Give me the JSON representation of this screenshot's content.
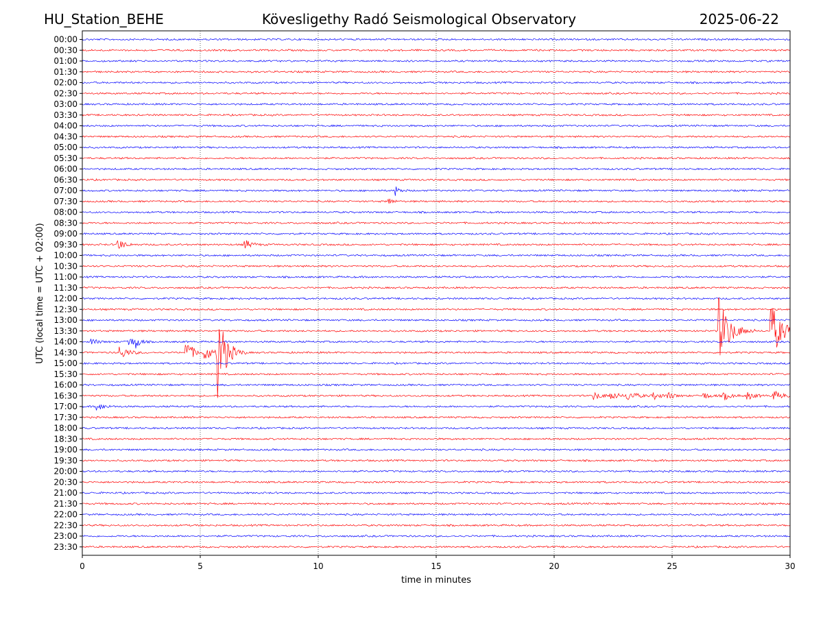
{
  "header": {
    "station": "HU_Station_BEHE",
    "observatory": "Kövesligethy Radó Seismological Observatory",
    "date": "2025-06-22"
  },
  "chart_data": {
    "type": "line",
    "title": "Kövesligethy Radó Seismological Observatory",
    "xlabel": "time in minutes",
    "ylabel": "UTC (local time = UTC + 02:00)",
    "xlim": [
      0,
      30
    ],
    "x_ticks": [
      "0",
      "5",
      "10",
      "15",
      "20",
      "25",
      "30"
    ],
    "grid_x_minutes": [
      5,
      10,
      15,
      20,
      25
    ],
    "grid": "vertical dotted",
    "colors": {
      "even_rows": "#0000ff",
      "odd_rows": "#ff0000"
    },
    "rows": [
      "00:00",
      "00:30",
      "01:00",
      "01:30",
      "02:00",
      "02:30",
      "03:00",
      "03:30",
      "04:00",
      "04:30",
      "05:00",
      "05:30",
      "06:00",
      "06:30",
      "07:00",
      "07:30",
      "08:00",
      "08:30",
      "09:00",
      "09:30",
      "10:00",
      "10:30",
      "11:00",
      "11:30",
      "12:00",
      "12:30",
      "13:00",
      "13:30",
      "14:00",
      "14:30",
      "15:00",
      "15:30",
      "16:00",
      "16:30",
      "17:00",
      "17:30",
      "18:00",
      "18:30",
      "19:00",
      "19:30",
      "20:00",
      "20:30",
      "21:00",
      "21:30",
      "22:00",
      "22:30",
      "23:00",
      "23:30"
    ],
    "events": [
      {
        "row": "07:00",
        "minute": 13.3,
        "amplitude": 0.5,
        "duration": 0.3
      },
      {
        "row": "07:30",
        "minute": 13.0,
        "amplitude": 0.35,
        "duration": 0.3
      },
      {
        "row": "09:30",
        "minute": 1.5,
        "amplitude": 0.6,
        "duration": 0.5
      },
      {
        "row": "09:30",
        "minute": 6.9,
        "amplitude": 0.5,
        "duration": 0.5
      },
      {
        "row": "13:30",
        "minute": 27.0,
        "amplitude": 3.5,
        "duration": 0.8
      },
      {
        "row": "13:30",
        "minute": 29.2,
        "amplitude": 3.0,
        "duration": 0.8
      },
      {
        "row": "14:00",
        "minute": 0.4,
        "amplitude": 0.4,
        "duration": 0.4
      },
      {
        "row": "14:00",
        "minute": 1.9,
        "amplitude": 0.9,
        "duration": 0.4
      },
      {
        "row": "14:00",
        "minute": 2.3,
        "amplitude": 0.6,
        "duration": 0.3
      },
      {
        "row": "14:30",
        "minute": 1.6,
        "amplitude": 0.7,
        "duration": 0.6
      },
      {
        "row": "14:30",
        "minute": 4.4,
        "amplitude": 1.4,
        "duration": 0.5
      },
      {
        "row": "14:30",
        "minute": 5.2,
        "amplitude": 0.9,
        "duration": 0.5
      },
      {
        "row": "14:30",
        "minute": 5.75,
        "amplitude": 5.0,
        "duration": 0.6
      },
      {
        "row": "16:30",
        "minute": 21.7,
        "amplitude": 0.4,
        "duration": 0.6
      },
      {
        "row": "16:30",
        "minute": 22.4,
        "amplitude": 0.4,
        "duration": 0.6
      },
      {
        "row": "16:30",
        "minute": 23.1,
        "amplitude": 0.45,
        "duration": 0.8
      },
      {
        "row": "16:30",
        "minute": 24.2,
        "amplitude": 0.35,
        "duration": 0.6
      },
      {
        "row": "16:30",
        "minute": 24.8,
        "amplitude": 0.35,
        "duration": 0.5
      },
      {
        "row": "16:30",
        "minute": 26.3,
        "amplitude": 0.35,
        "duration": 0.6
      },
      {
        "row": "16:30",
        "minute": 27.2,
        "amplitude": 0.4,
        "duration": 0.6
      },
      {
        "row": "16:30",
        "minute": 28.2,
        "amplitude": 0.35,
        "duration": 0.6
      },
      {
        "row": "16:30",
        "minute": 29.3,
        "amplitude": 0.45,
        "duration": 0.8
      },
      {
        "row": "17:00",
        "minute": 0.6,
        "amplitude": 0.4,
        "duration": 0.6
      }
    ]
  }
}
